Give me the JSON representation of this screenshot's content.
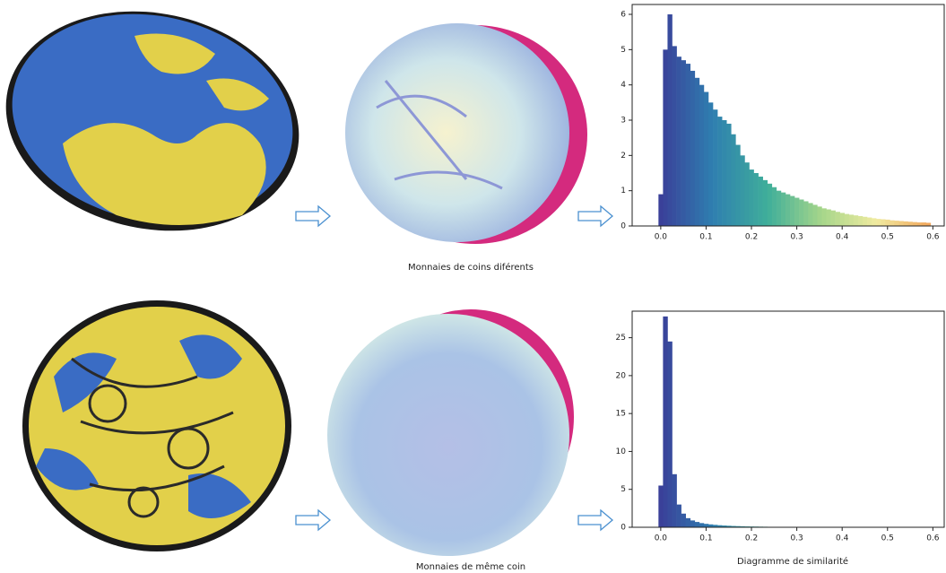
{
  "labels": {
    "top_row": "Monnaies de coins diférents",
    "bottom_row": "Monnaies de même coin",
    "histogram": "Diagramme de similarité"
  },
  "chart_data": [
    {
      "type": "histogram",
      "colormap": [
        "#3a3d98",
        "#2f7fb0",
        "#3fae9a",
        "#a6d68a",
        "#f0eba0",
        "#f2a55a"
      ],
      "bins": [
        -0.005,
        0.005,
        0.015,
        0.025,
        0.035,
        0.045,
        0.055,
        0.065,
        0.075,
        0.085,
        0.095,
        0.105,
        0.115,
        0.125,
        0.135,
        0.145,
        0.155,
        0.165,
        0.175,
        0.185,
        0.195,
        0.205,
        0.215,
        0.225,
        0.235,
        0.245,
        0.255,
        0.265,
        0.275,
        0.285,
        0.295,
        0.305,
        0.315,
        0.325,
        0.335,
        0.345,
        0.355,
        0.365,
        0.375,
        0.385,
        0.395,
        0.405,
        0.415,
        0.425,
        0.435,
        0.445,
        0.455,
        0.465,
        0.475,
        0.485,
        0.495,
        0.505,
        0.515,
        0.525,
        0.535,
        0.545,
        0.555,
        0.565,
        0.575,
        0.585,
        0.595
      ],
      "values": [
        0.9,
        5.0,
        6.0,
        5.1,
        4.8,
        4.7,
        4.6,
        4.4,
        4.2,
        4.0,
        3.8,
        3.5,
        3.3,
        3.1,
        3.0,
        2.9,
        2.6,
        2.3,
        2.0,
        1.8,
        1.6,
        1.5,
        1.4,
        1.3,
        1.2,
        1.1,
        1.0,
        0.95,
        0.9,
        0.85,
        0.8,
        0.75,
        0.7,
        0.65,
        0.6,
        0.55,
        0.5,
        0.47,
        0.44,
        0.4,
        0.37,
        0.34,
        0.32,
        0.3,
        0.28,
        0.26,
        0.24,
        0.22,
        0.2,
        0.19,
        0.18,
        0.16,
        0.15,
        0.14,
        0.13,
        0.12,
        0.11,
        0.1,
        0.1,
        0.09
      ],
      "xlim": [
        -0.063,
        0.625
      ],
      "ylim": [
        0,
        6.28
      ],
      "xticks": [
        {
          "value": 0,
          "label": "0.0"
        },
        0.1,
        0.2,
        0.3,
        0.4,
        0.5,
        0.6
      ],
      "yticks": [
        0,
        1,
        2,
        3,
        4,
        5,
        6
      ]
    },
    {
      "type": "histogram",
      "colormap": [
        "#3a3d98",
        "#2f7fb0",
        "#3fae9a",
        "#a6d68a",
        "#f0eba0",
        "#f2a55a"
      ],
      "bins": [
        -0.005,
        0.005,
        0.015,
        0.025,
        0.035,
        0.045,
        0.055,
        0.065,
        0.075,
        0.085,
        0.095,
        0.105,
        0.115,
        0.125,
        0.135,
        0.145,
        0.155,
        0.165,
        0.175,
        0.185,
        0.195,
        0.205,
        0.215,
        0.225,
        0.235,
        0.245,
        0.255,
        0.265,
        0.275,
        0.285,
        0.295,
        0.305,
        0.315,
        0.325,
        0.335,
        0.345,
        0.355,
        0.365,
        0.375,
        0.385,
        0.395,
        0.405,
        0.415,
        0.425,
        0.435,
        0.445,
        0.455,
        0.465,
        0.475,
        0.485,
        0.495,
        0.505,
        0.515,
        0.525,
        0.535,
        0.545,
        0.555,
        0.565,
        0.575,
        0.585,
        0.595
      ],
      "values": [
        5.5,
        27.8,
        24.5,
        7.0,
        3.0,
        1.8,
        1.2,
        0.9,
        0.7,
        0.55,
        0.45,
        0.38,
        0.32,
        0.27,
        0.23,
        0.2,
        0.17,
        0.15,
        0.13,
        0.11,
        0.1,
        0.09,
        0.08,
        0.07,
        0.06,
        0.05,
        0.05,
        0.04,
        0.04,
        0.03,
        0.03,
        0.03,
        0.02,
        0.02,
        0.02,
        0.02,
        0.02,
        0.01,
        0.01,
        0.01,
        0.01,
        0.01,
        0.01,
        0.01,
        0.01,
        0.01,
        0.01,
        0.01,
        0.01,
        0.01,
        0.01,
        0.01,
        0.01,
        0.01,
        0.01,
        0.01,
        0.01,
        0.01,
        0.01,
        0.01
      ],
      "xlim": [
        -0.063,
        0.625
      ],
      "ylim": [
        0,
        28.5
      ],
      "xticks": [
        {
          "value": 0,
          "label": "0.0"
        },
        0.1,
        0.2,
        0.3,
        0.4,
        0.5,
        0.6
      ],
      "yticks": [
        0,
        5,
        10,
        15,
        20,
        25
      ],
      "xlabel": "Diagramme de similarité"
    }
  ]
}
